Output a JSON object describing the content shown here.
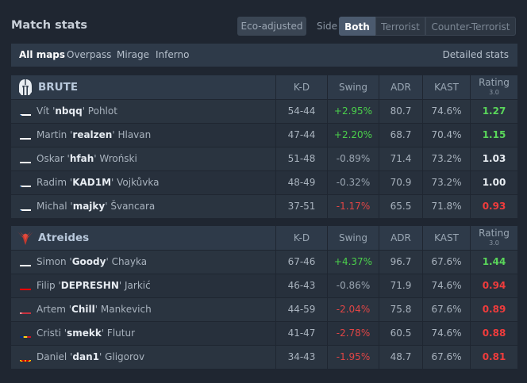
{
  "header": {
    "title": "Match stats",
    "eco_label": "Eco-adjusted",
    "side_label": "Side",
    "side_options": [
      "Both",
      "Terrorist",
      "Counter-Terrorist"
    ]
  },
  "filters": {
    "maps": [
      "All maps",
      "Overpass",
      "Mirage",
      "Inferno"
    ],
    "detailed_label": "Detailed stats"
  },
  "columns": {
    "kd": "K-D",
    "swing": "Swing",
    "adr": "ADR",
    "kast": "KAST",
    "rating": "Rating",
    "rating_version": "3.0"
  },
  "teams": [
    {
      "name": "BRUTE",
      "logo_icon": "spartan-helmet-icon",
      "players": [
        {
          "flag": "cz",
          "first": "Vít '",
          "nick": "nbqq",
          "last": "' Pohlot",
          "kd": "54-44",
          "swing": "+2.95%",
          "adr": "80.7",
          "kast": "74.6%",
          "rating": "1.27"
        },
        {
          "flag": "sk",
          "first": "Martin '",
          "nick": "realzen",
          "last": "' Hlavan",
          "kd": "47-44",
          "swing": "+2.20%",
          "adr": "68.7",
          "kast": "70.4%",
          "rating": "1.15"
        },
        {
          "flag": "pl",
          "first": "Oskar '",
          "nick": "hfah",
          "last": "' Wroński",
          "kd": "51-48",
          "swing": "-0.89%",
          "adr": "71.4",
          "kast": "73.2%",
          "rating": "1.03"
        },
        {
          "flag": "cz",
          "first": "Radim '",
          "nick": "KAD1M",
          "last": "' Vojkůvka",
          "kd": "48-49",
          "swing": "-0.32%",
          "adr": "70.9",
          "kast": "73.2%",
          "rating": "1.00"
        },
        {
          "flag": "cz",
          "first": "Michal '",
          "nick": "majky",
          "last": "' Švancara",
          "kd": "37-51",
          "swing": "-1.17%",
          "adr": "65.5",
          "kast": "71.8%",
          "rating": "0.93"
        }
      ]
    },
    {
      "name": "Atreides",
      "logo_icon": "atreides-bird-icon",
      "players": [
        {
          "flag": "ru",
          "first": "Simon '",
          "nick": "Goody",
          "last": "' Chayka",
          "kd": "67-46",
          "swing": "+4.37%",
          "adr": "96.7",
          "kast": "67.6%",
          "rating": "1.44"
        },
        {
          "flag": "hr",
          "first": "Filip '",
          "nick": "DEPRESHN",
          "last": "' Jarkić",
          "kd": "46-43",
          "swing": "-0.86%",
          "adr": "71.9",
          "kast": "74.6%",
          "rating": "0.94"
        },
        {
          "flag": "by",
          "first": "Artem '",
          "nick": "Chill",
          "last": "' Mankevich",
          "kd": "44-59",
          "swing": "-2.04%",
          "adr": "75.8",
          "kast": "67.6%",
          "rating": "0.89"
        },
        {
          "flag": "ro",
          "first": "Cristi '",
          "nick": "smekk",
          "last": "' Flutur",
          "kd": "41-47",
          "swing": "-2.78%",
          "adr": "60.5",
          "kast": "74.6%",
          "rating": "0.88"
        },
        {
          "flag": "mk",
          "first": "Daniel '",
          "nick": "dan1",
          "last": "' Gligorov",
          "kd": "34-43",
          "swing": "-1.95%",
          "adr": "48.7",
          "kast": "67.6%",
          "rating": "0.81"
        }
      ]
    }
  ],
  "colors": {
    "positive": "#4bd04b",
    "negative": "#e04545",
    "rating_good": "#5ad65a",
    "rating_bad": "#f03c3c",
    "background": "#1f2631"
  }
}
